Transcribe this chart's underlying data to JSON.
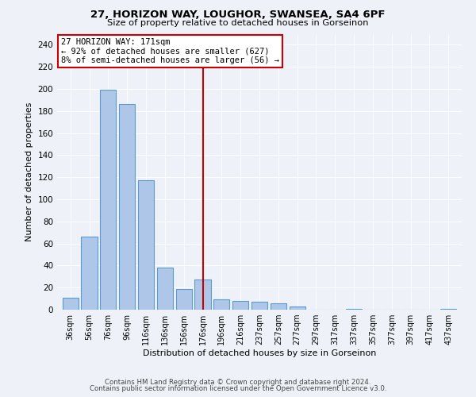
{
  "title": "27, HORIZON WAY, LOUGHOR, SWANSEA, SA4 6PF",
  "subtitle": "Size of property relative to detached houses in Gorseinon",
  "xlabel": "Distribution of detached houses by size in Gorseinon",
  "ylabel": "Number of detached properties",
  "bar_labels": [
    "36sqm",
    "56sqm",
    "76sqm",
    "96sqm",
    "116sqm",
    "136sqm",
    "156sqm",
    "176sqm",
    "196sqm",
    "216sqm",
    "237sqm",
    "257sqm",
    "277sqm",
    "297sqm",
    "317sqm",
    "337sqm",
    "357sqm",
    "377sqm",
    "397sqm",
    "417sqm",
    "437sqm"
  ],
  "bar_values": [
    11,
    66,
    199,
    186,
    117,
    38,
    19,
    27,
    9,
    8,
    7,
    6,
    3,
    0,
    0,
    1,
    0,
    0,
    0,
    0,
    1
  ],
  "bar_color": "#aec6e8",
  "bar_edge_color": "#5b9bd5",
  "vline_x_index": 7,
  "vline_color": "#cc0000",
  "annotation_line1": "27 HORIZON WAY: 171sqm",
  "annotation_line2": "← 92% of detached houses are smaller (627)",
  "annotation_line3": "8% of semi-detached houses are larger (56) →",
  "annotation_box_color": "#ffffff",
  "annotation_box_edge_color": "#cc0000",
  "ylim": [
    0,
    250
  ],
  "yticks": [
    0,
    20,
    40,
    60,
    80,
    100,
    120,
    140,
    160,
    180,
    200,
    220,
    240
  ],
  "footer_line1": "Contains HM Land Registry data © Crown copyright and database right 2024.",
  "footer_line2": "Contains public sector information licensed under the Open Government Licence v3.0.",
  "bg_color": "#eef2f8"
}
